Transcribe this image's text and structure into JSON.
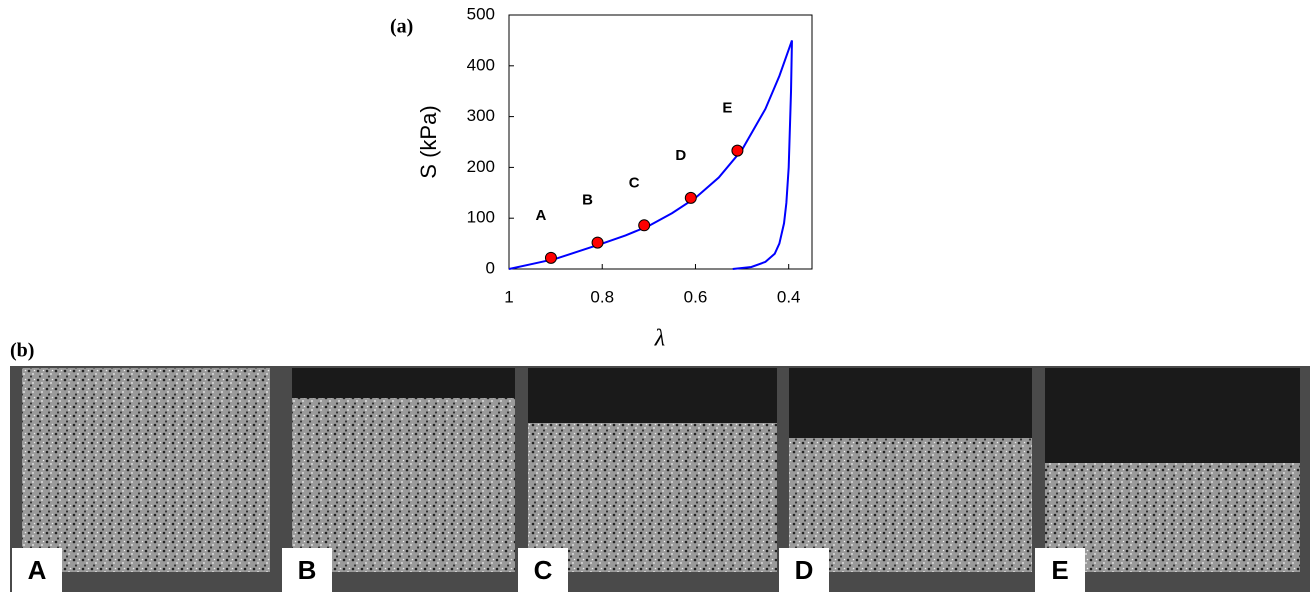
{
  "panel_a": "(a)",
  "panel_b": "(b)",
  "chart_data": {
    "type": "line",
    "x_label": "λ",
    "y_label": "S (kPa)",
    "xlim": [
      1,
      0.35
    ],
    "ylim": [
      0,
      500
    ],
    "xticks": [
      1,
      0.8,
      0.6,
      0.4
    ],
    "yticks": [
      0,
      100,
      200,
      300,
      400,
      500
    ],
    "series": [
      {
        "color": "#0000ff",
        "x": [
          1,
          0.95,
          0.9,
          0.85,
          0.8,
          0.75,
          0.7,
          0.65,
          0.6,
          0.55,
          0.5,
          0.45,
          0.42,
          0.393
        ],
        "values": [
          0,
          10,
          20,
          35,
          50,
          66,
          85,
          110,
          140,
          180,
          235,
          315,
          380,
          450
        ]
      },
      {
        "color": "#0000ff",
        "x": [
          0.393,
          0.395,
          0.4,
          0.405,
          0.41,
          0.42,
          0.43,
          0.45,
          0.48,
          0.52
        ],
        "values": [
          450,
          350,
          200,
          130,
          90,
          50,
          30,
          14,
          4,
          0
        ]
      }
    ],
    "markers": {
      "color": "#ff0000",
      "x": [
        0.91,
        0.81,
        0.71,
        0.61,
        0.51
      ],
      "values": [
        22,
        52,
        86,
        140,
        233
      ],
      "labels": [
        "A",
        "B",
        "C",
        "D",
        "E"
      ]
    }
  },
  "images": {
    "labels": [
      "A",
      "B",
      "C",
      "D",
      "E"
    ]
  }
}
